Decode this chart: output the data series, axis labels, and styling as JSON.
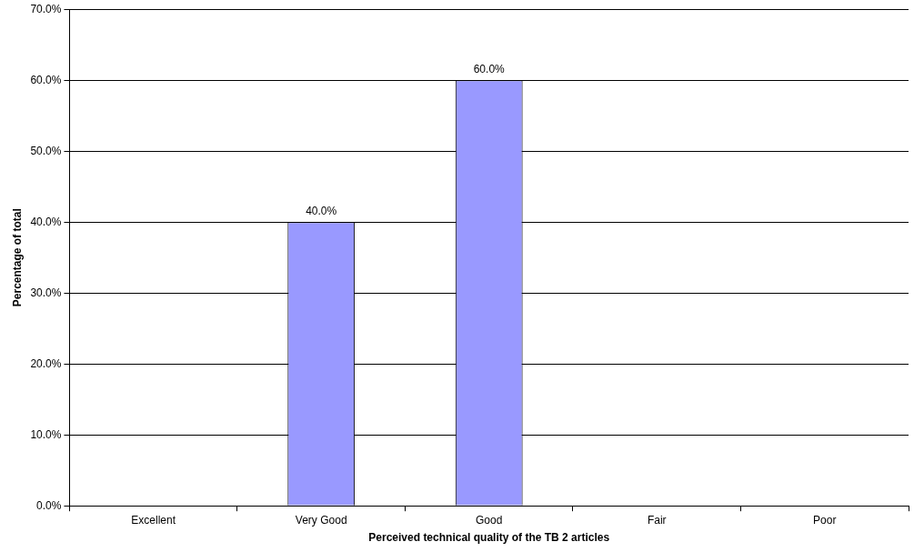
{
  "chart_data": {
    "type": "bar",
    "xlabel": "Perceived technical quality of the TB 2 articles",
    "ylabel": "Percentage of total",
    "categories": [
      "Excellent",
      "Very Good",
      "Good",
      "Fair",
      "Poor"
    ],
    "values": [
      0,
      40,
      60,
      0,
      0
    ],
    "color": "#9999ff",
    "value_labels": [
      null,
      "40.0%",
      "60.0%",
      null,
      null
    ],
    "ylim": [
      0,
      70
    ],
    "yticks": [
      {
        "value": 0,
        "label": "0.0%"
      },
      {
        "value": 10,
        "label": "10.0%"
      },
      {
        "value": 20,
        "label": "20.0%"
      },
      {
        "value": 30,
        "label": "30.0%"
      },
      {
        "value": 40,
        "label": "40.0%"
      },
      {
        "value": 50,
        "label": "50.0%"
      },
      {
        "value": 60,
        "label": "60.0%"
      },
      {
        "value": 70,
        "label": "70.0%"
      }
    ],
    "grid": "y",
    "legend": false
  }
}
